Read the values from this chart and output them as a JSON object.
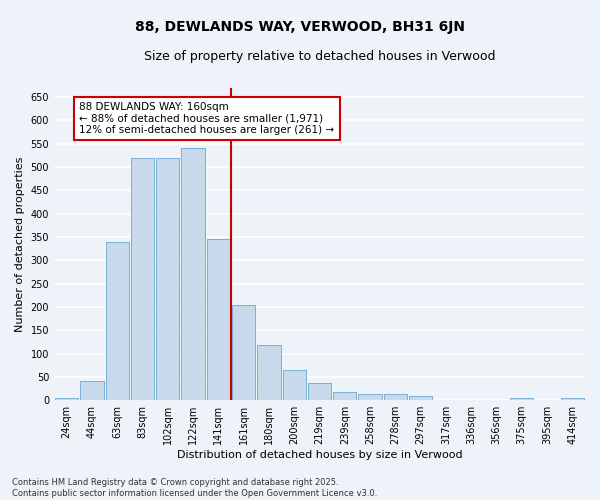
{
  "title": "88, DEWLANDS WAY, VERWOOD, BH31 6JN",
  "subtitle": "Size of property relative to detached houses in Verwood",
  "xlabel": "Distribution of detached houses by size in Verwood",
  "ylabel": "Number of detached properties",
  "categories": [
    "24sqm",
    "44sqm",
    "63sqm",
    "83sqm",
    "102sqm",
    "122sqm",
    "141sqm",
    "161sqm",
    "180sqm",
    "200sqm",
    "219sqm",
    "239sqm",
    "258sqm",
    "278sqm",
    "297sqm",
    "317sqm",
    "336sqm",
    "356sqm",
    "375sqm",
    "395sqm",
    "414sqm"
  ],
  "values": [
    5,
    42,
    340,
    520,
    520,
    540,
    345,
    205,
    118,
    65,
    37,
    18,
    14,
    14,
    8,
    1,
    1,
    1,
    5,
    1,
    5
  ],
  "bar_color": "#c8d9eb",
  "bar_edge_color": "#7bafd4",
  "vline_color": "#cc0000",
  "annotation_text": "88 DEWLANDS WAY: 160sqm\n← 88% of detached houses are smaller (1,971)\n12% of semi-detached houses are larger (261) →",
  "annotation_box_color": "#ffffff",
  "annotation_box_edge": "#cc0000",
  "ylim": [
    0,
    670
  ],
  "yticks": [
    0,
    50,
    100,
    150,
    200,
    250,
    300,
    350,
    400,
    450,
    500,
    550,
    600,
    650
  ],
  "background_color": "#eef2f9",
  "grid_color": "#ffffff",
  "footer_text": "Contains HM Land Registry data © Crown copyright and database right 2025.\nContains public sector information licensed under the Open Government Licence v3.0.",
  "title_fontsize": 10,
  "subtitle_fontsize": 9,
  "xlabel_fontsize": 8,
  "ylabel_fontsize": 8,
  "tick_fontsize": 7,
  "annotation_fontsize": 7.5,
  "footer_fontsize": 6
}
